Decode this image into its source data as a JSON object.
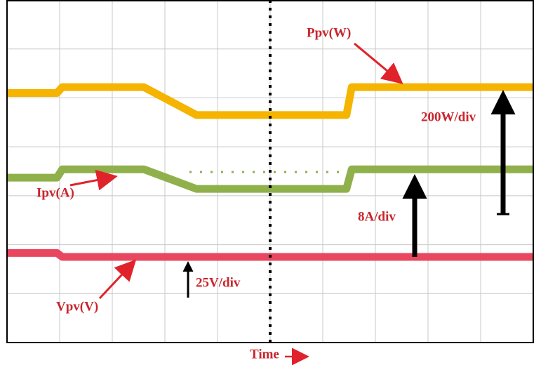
{
  "chart_data": {
    "type": "line",
    "x_label": "Time",
    "x": [
      0,
      0.95,
      1.05,
      2.6,
      3.6,
      6.45,
      6.55,
      10
    ],
    "xlim": [
      0,
      10
    ],
    "ylim": [
      0,
      7
    ],
    "series": [
      {
        "name": "Ppv(W)",
        "color": "#f5b400",
        "values": [
          5.1,
          5.1,
          5.22,
          5.22,
          4.65,
          4.65,
          5.22,
          5.22
        ]
      },
      {
        "name": "Ipv(A)",
        "color": "#8fb04a",
        "values": [
          3.37,
          3.37,
          3.54,
          3.54,
          3.14,
          3.14,
          3.54,
          3.54
        ]
      },
      {
        "name": "Vpv(V)",
        "color": "#e8475f",
        "values": [
          1.83,
          1.83,
          1.75,
          1.75,
          1.75,
          1.75,
          1.75,
          1.75
        ]
      }
    ],
    "annotations": [
      "200W/div",
      "8A/div",
      "25V/div"
    ]
  }
}
